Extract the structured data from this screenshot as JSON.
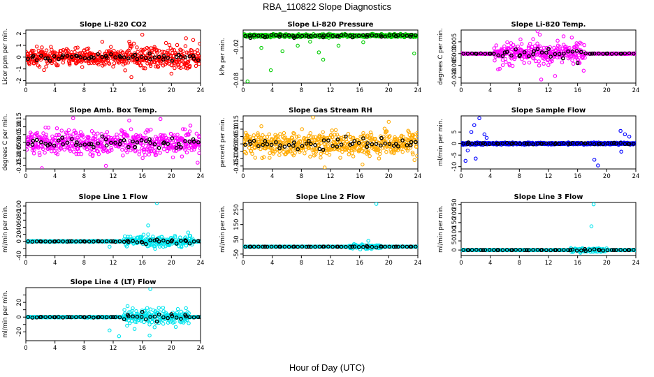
{
  "figure": {
    "title": "RBA_110822  Slope Diagnostics",
    "xlabel": "Hour of Day (UTC)"
  },
  "chart_data": [
    {
      "type": "scatter",
      "title": "Slope Li-820 CO2",
      "ylabel": "Licor ppm per min.",
      "xlim": [
        0,
        24
      ],
      "xticks": [
        0,
        4,
        8,
        12,
        16,
        20,
        24
      ],
      "ylim": [
        -2.2,
        2.3
      ],
      "yticks": [
        -2,
        -1,
        0,
        1,
        2
      ],
      "yticklabels": [
        "-2",
        "-1",
        "0",
        "1",
        "2"
      ],
      "color": "#ff0000",
      "pattern": {
        "kind": "noise",
        "center": 0,
        "spread": 0.55,
        "spread_late": 0.9
      },
      "series": [
        {
          "name": "samples",
          "x": [
            0.5,
            1.5,
            2.5,
            4,
            6,
            8,
            10.5,
            12,
            14.5,
            16,
            18,
            20,
            22,
            23.5
          ],
          "y": [
            -0.6,
            0.9,
            -1.1,
            0.4,
            -0.5,
            0.2,
            1.3,
            -0.8,
            -1.7,
            1.9,
            0.6,
            -1.4,
            1.6,
            -0.2
          ]
        },
        {
          "name": "means",
          "x": [
            1,
            3,
            5,
            7,
            9,
            11,
            13,
            15,
            17,
            19,
            21,
            23
          ],
          "y": [
            0.1,
            -0.1,
            0.0,
            0.1,
            0.0,
            0.1,
            0.0,
            0.2,
            0.3,
            0.1,
            0.2,
            0.1
          ]
        }
      ]
    },
    {
      "type": "scatter",
      "title": "Slope Li-820 Pressure",
      "ylabel": "kPa per min.",
      "xlim": [
        0,
        24
      ],
      "xticks": [
        0,
        4,
        8,
        12,
        16,
        20,
        24
      ],
      "ylim": [
        -0.085,
        0.01
      ],
      "yticks": [
        -0.08,
        -0.06,
        -0.04,
        -0.02
      ],
      "yticklabels": [
        "-0.08",
        "",
        "",
        "-0.02"
      ],
      "color": "#00cc00",
      "pattern": {
        "kind": "band",
        "center": 0.0,
        "spread": 0.004
      },
      "series": [
        {
          "name": "outliers",
          "x": [
            0.6,
            2.5,
            3.8,
            5.4,
            7.5,
            9.2,
            10.4,
            11.0,
            13.1,
            16.5,
            23.5
          ],
          "y": [
            -0.082,
            -0.022,
            -0.062,
            -0.028,
            -0.018,
            -0.011,
            -0.03,
            -0.043,
            -0.018,
            -0.012,
            -0.032
          ]
        },
        {
          "name": "means",
          "x": [
            1,
            3,
            5,
            7,
            9,
            11,
            13,
            15,
            17,
            19,
            21,
            23
          ],
          "y": [
            -0.004,
            -0.003,
            -0.002,
            -0.004,
            -0.002,
            -0.003,
            -0.001,
            -0.003,
            -0.002,
            -0.002,
            -0.001,
            -0.002
          ]
        }
      ]
    },
    {
      "type": "scatter",
      "title": "Slope Li-820 Temp.",
      "ylabel": "degrees C per min.",
      "xlim": [
        0,
        24
      ],
      "xticks": [
        0,
        4,
        8,
        12,
        16,
        20,
        24
      ],
      "ylim": [
        -0.0125,
        0.01
      ],
      "yticks": [
        -0.01,
        -0.005,
        0.0,
        0.005
      ],
      "yticklabels": [
        "-0.010",
        "-0.005",
        "0.000",
        "0.005"
      ],
      "color": "#ff00ff",
      "pattern": {
        "kind": "burst",
        "center": 0.0,
        "from": 4.5,
        "to": 17,
        "spread": 0.0045,
        "flat": 0.0001
      },
      "series": [
        {
          "name": "peaks",
          "x": [
            10.5,
            11,
            15.2,
            12.9,
            10.8
          ],
          "y": [
            0.0095,
            -0.011,
            0.0068,
            -0.0095,
            0.008
          ]
        },
        {
          "name": "means",
          "x": [
            2,
            4,
            6,
            8,
            10,
            12,
            14,
            16,
            18,
            20,
            22
          ],
          "y": [
            0.0,
            0.0,
            0.0005,
            -0.001,
            0.001,
            0.002,
            -0.002,
            -0.004,
            0.0,
            0.0,
            0.0
          ]
        }
      ]
    },
    {
      "type": "scatter",
      "title": "Slope Amb. Box Temp.",
      "ylabel": "degrees C per min.",
      "xlim": [
        0,
        24
      ],
      "xticks": [
        0,
        4,
        8,
        12,
        16,
        20,
        24
      ],
      "ylim": [
        -0.17,
        0.17
      ],
      "yticks": [
        -0.15,
        -0.1,
        -0.05,
        0.0,
        0.05,
        0.1,
        0.15
      ],
      "yticklabels": [
        "-0.15",
        "-0.10",
        "-0.05",
        "0.00",
        "0.05",
        "0.10",
        "0.15"
      ],
      "color": "#ff00ff",
      "pattern": {
        "kind": "noise",
        "center": 0,
        "spread": 0.07
      },
      "series": [
        {
          "name": "extremes",
          "x": [
            2.2,
            6.5,
            11.0,
            14.2,
            18.5,
            23.6
          ],
          "y": [
            -0.165,
            0.155,
            -0.15,
            0.14,
            0.15,
            -0.13
          ]
        },
        {
          "name": "means",
          "x": [
            1,
            3,
            5,
            7,
            9,
            11,
            13,
            15,
            17,
            19,
            21,
            23
          ],
          "y": [
            0.01,
            -0.02,
            0.03,
            0.0,
            -0.01,
            0.02,
            0.01,
            -0.03,
            0.02,
            0.0,
            -0.01,
            0.02
          ]
        }
      ]
    },
    {
      "type": "scatter",
      "title": "Slope Gas Stream RH",
      "ylabel": "percent per min.",
      "xlim": [
        0,
        24
      ],
      "xticks": [
        0,
        4,
        8,
        12,
        16,
        20,
        24
      ],
      "ylim": [
        -0.17,
        0.19
      ],
      "yticks": [
        -0.15,
        -0.1,
        -0.05,
        0.0,
        0.05,
        0.1,
        0.15
      ],
      "yticklabels": [
        "-0.15",
        "-0.10",
        "-0.05",
        "0.00",
        "0.05",
        "0.10",
        "0.15"
      ],
      "color": "#ffaa00",
      "pattern": {
        "kind": "noise",
        "center": 0,
        "spread": 0.07
      },
      "series": [
        {
          "name": "extremes",
          "x": [
            9.6,
            11.2,
            2.5,
            16.4,
            20.0
          ],
          "y": [
            0.18,
            -0.16,
            0.12,
            -0.14,
            0.15
          ]
        },
        {
          "name": "means",
          "x": [
            1,
            3,
            5,
            7,
            9,
            11,
            13,
            15,
            17,
            19,
            21,
            23
          ],
          "y": [
            0.0,
            0.02,
            -0.03,
            0.01,
            0.02,
            -0.04,
            0.03,
            0.0,
            -0.02,
            0.04,
            0.0,
            -0.01
          ]
        }
      ]
    },
    {
      "type": "scatter",
      "title": "Slope Sample Flow",
      "ylabel": "ml/min per min.",
      "xlim": [
        0,
        24
      ],
      "xticks": [
        0,
        4,
        8,
        12,
        16,
        20,
        24
      ],
      "ylim": [
        -11,
        12
      ],
      "yticks": [
        -10,
        -5,
        0,
        5
      ],
      "yticklabels": [
        "-10",
        "-5",
        "0",
        "5"
      ],
      "color": "#0000ff",
      "pattern": {
        "kind": "band",
        "center": 0,
        "spread": 0.6
      },
      "series": [
        {
          "name": "outliers",
          "x": [
            0.6,
            1.4,
            1.8,
            2.5,
            3.2,
            0.9,
            2.0,
            3.5,
            18.3,
            18.8,
            21.9,
            22.5,
            23.1,
            22.0
          ],
          "y": [
            -7.5,
            5.0,
            8.0,
            11.0,
            4.0,
            -3.0,
            -6.5,
            2.5,
            -7.0,
            -9.5,
            5.5,
            4.0,
            3.0,
            -3.5
          ]
        },
        {
          "name": "means",
          "x": [
            1,
            3,
            5,
            7,
            9,
            11,
            13,
            15,
            17,
            19,
            21,
            23
          ],
          "y": [
            0.5,
            0.2,
            0.0,
            0.1,
            -0.1,
            0.0,
            0.2,
            -0.1,
            0.1,
            0.0,
            0.3,
            -0.2
          ]
        }
      ]
    },
    {
      "type": "scatter",
      "title": "Slope Line 1 Flow",
      "ylabel": "ml/min per min.",
      "xlim": [
        0,
        24
      ],
      "xticks": [
        0,
        4,
        8,
        12,
        16,
        20,
        24
      ],
      "ylim": [
        -40,
        110
      ],
      "yticks": [
        -40,
        -20,
        0,
        20,
        40,
        60,
        80,
        100
      ],
      "yticklabels": [
        "-40",
        "",
        "0",
        "20",
        "40",
        "60",
        "80",
        "100"
      ],
      "color": "#00e5ee",
      "pattern": {
        "kind": "burst",
        "center": 0,
        "from": 13.5,
        "to": 23,
        "spread": 15,
        "flat": 1
      },
      "series": [
        {
          "name": "peaks",
          "x": [
            18.0,
            11.5,
            16.8,
            22.3
          ],
          "y": [
            108,
            -15,
            45,
            25
          ]
        },
        {
          "name": "means",
          "x": [
            2,
            4,
            6,
            8,
            10,
            12,
            14,
            16,
            18,
            20,
            22,
            24
          ],
          "y": [
            0,
            0,
            0,
            0,
            0,
            0,
            2,
            -3,
            5,
            0,
            1,
            0
          ]
        }
      ]
    },
    {
      "type": "scatter",
      "title": "Slope Line 2 Flow",
      "ylabel": "ml/min per min.",
      "xlim": [
        0,
        24
      ],
      "xticks": [
        0,
        4,
        8,
        12,
        16,
        20,
        24
      ],
      "ylim": [
        -60,
        300
      ],
      "yticks": [
        -50,
        50,
        150,
        250
      ],
      "yticklabels": [
        "-50",
        "50",
        "150",
        "250"
      ],
      "color": "#00e5ee",
      "pattern": {
        "kind": "burst",
        "center": 0,
        "from": 14.5,
        "to": 19,
        "spread": 12,
        "flat": 1
      },
      "series": [
        {
          "name": "peaks",
          "x": [
            18.3,
            17.2
          ],
          "y": [
            290,
            40
          ]
        },
        {
          "name": "means",
          "x": [
            1,
            3,
            5,
            7,
            9,
            11,
            13,
            15,
            17,
            19,
            21,
            23
          ],
          "y": [
            0,
            0,
            0,
            0,
            0,
            0,
            0,
            0,
            5,
            0,
            0,
            0
          ]
        }
      ]
    },
    {
      "type": "scatter",
      "title": "Slope Line 3 Flow",
      "ylabel": "ml/min per min.",
      "xlim": [
        0,
        24
      ],
      "xticks": [
        0,
        4,
        8,
        12,
        16,
        20,
        24
      ],
      "ylim": [
        -30,
        260
      ],
      "yticks": [
        0,
        50,
        100,
        150,
        200,
        250
      ],
      "yticklabels": [
        "0",
        "50",
        "100",
        "150",
        "200",
        "250"
      ],
      "color": "#00e5ee",
      "pattern": {
        "kind": "burst",
        "center": 0,
        "from": 15,
        "to": 20,
        "spread": 10,
        "flat": 1
      },
      "series": [
        {
          "name": "peaks",
          "x": [
            18.2,
            17.9,
            0.2
          ],
          "y": [
            250,
            130,
            0
          ]
        },
        {
          "name": "means",
          "x": [
            1,
            3,
            5,
            7,
            9,
            11,
            13,
            15,
            17,
            19,
            21,
            23
          ],
          "y": [
            0,
            0,
            0,
            0,
            0,
            0,
            0,
            0,
            5,
            0,
            0,
            0
          ]
        }
      ]
    },
    {
      "type": "scatter",
      "title": "Slope Line 4 (LT) Flow",
      "ylabel": "ml/min per min.",
      "xlim": [
        0,
        24
      ],
      "xticks": [
        0,
        4,
        8,
        12,
        16,
        20,
        24
      ],
      "ylim": [
        -32,
        40
      ],
      "yticks": [
        -20,
        -10,
        0,
        10,
        20,
        30
      ],
      "yticklabels": [
        "-20",
        "",
        "0",
        "",
        "20",
        ""
      ],
      "color": "#00e5ee",
      "pattern": {
        "kind": "burst",
        "center": 0,
        "from": 13.5,
        "to": 22.5,
        "spread": 10,
        "flat": 0.5
      },
      "series": [
        {
          "name": "peaks",
          "x": [
            17.1,
            12.8,
            11.5,
            17.0
          ],
          "y": [
            38,
            -26,
            -18,
            -25
          ]
        },
        {
          "name": "means",
          "x": [
            2,
            4,
            6,
            8,
            10,
            12,
            14,
            16,
            18,
            20,
            22,
            24
          ],
          "y": [
            0,
            0,
            0,
            0,
            0,
            0,
            3,
            7,
            -6,
            4,
            1,
            0
          ]
        }
      ]
    }
  ]
}
